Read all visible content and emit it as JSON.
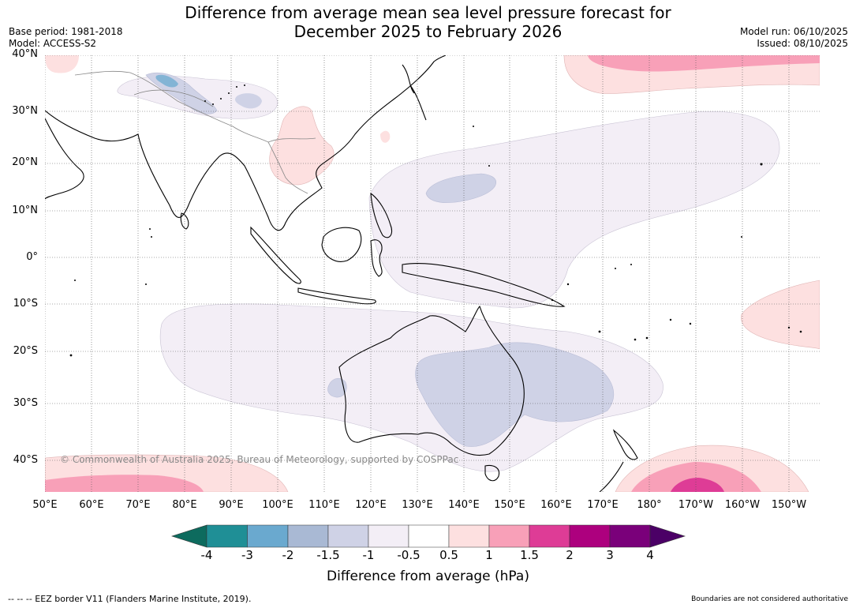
{
  "header": {
    "title_line1": "Difference from average mean sea level pressure forecast for",
    "title_line2": "December 2025 to February 2026",
    "base_period": "Base period: 1981-2018",
    "model": "Model: ACCESS-S2",
    "model_run": "Model run: 06/10/2025",
    "issued": "Issued: 08/10/2025"
  },
  "map": {
    "lat_labels": [
      "40°N",
      "30°N",
      "20°N",
      "10°N",
      "0°",
      "10°S",
      "20°S",
      "30°S",
      "40°S"
    ],
    "lon_labels": [
      "50°E",
      "60°E",
      "70°E",
      "80°E",
      "90°E",
      "100°E",
      "110°E",
      "120°E",
      "130°E",
      "140°E",
      "150°E",
      "160°E",
      "170°E",
      "180°",
      "170°W",
      "160°W",
      "150°W"
    ],
    "copyright": "© Commonwealth of Australia 2025, Bureau of Meteorology, supported by COSPPac"
  },
  "colorbar": {
    "labels": [
      "-4",
      "-3",
      "-2",
      "-1.5",
      "-1",
      "-0.5",
      "0.5",
      "1",
      "1.5",
      "2",
      "3",
      "4"
    ],
    "colors": [
      "#0d6b5e",
      "#1f8f96",
      "#6aa9cf",
      "#a9b9d4",
      "#cfd2e6",
      "#f3eef6",
      "#ffffff",
      "#fde0e0",
      "#f8a0b8",
      "#de3c96",
      "#ad007e",
      "#7a007a",
      "#4b0066"
    ],
    "title": "Difference from average (hPa)"
  },
  "footer": {
    "eez_note": "--  --  -- EEZ border V11 (Flanders Marine Institute, 2019).",
    "boundaries_note": "Boundaries are not considered authoritative"
  }
}
